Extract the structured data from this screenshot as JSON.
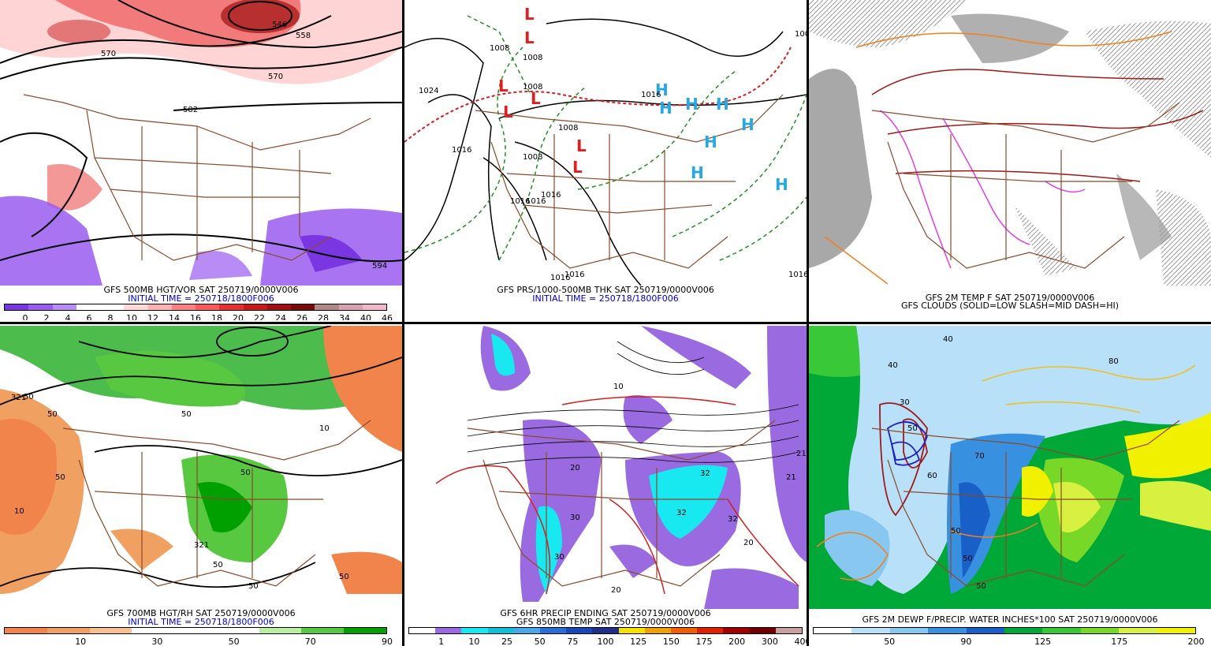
{
  "panels": [
    {
      "id": "p1",
      "caption1": "GFS 500MB HGT/VOR SAT 250719/0000V006",
      "caption2": "INITIAL TIME = 250718/1800F006",
      "colorbar_colors": [
        "#7a36e0",
        "#9a5cf0",
        "#b88cf5",
        "#ffffff",
        "#ffffff",
        "#ffd8d8",
        "#ffb0b0",
        "#ff8080",
        "#ff5858",
        "#e83030",
        "#c81818",
        "#a01010",
        "#7a0a0a",
        "#b08888",
        "#d8a0b0",
        "#f0b8c8"
      ],
      "colorbar_labels": [
        "0",
        "2",
        "4",
        "6",
        "8",
        "10",
        "12",
        "14",
        "16",
        "18",
        "20",
        "22",
        "24",
        "26",
        "28",
        "34",
        "40",
        "46"
      ],
      "contour_labels": [
        "546",
        "558",
        "570",
        "570",
        "582",
        "594"
      ]
    },
    {
      "id": "p2",
      "caption1": "GFS PRS/1000-500MB THK SAT 250719/0000V006",
      "caption2": "INITIAL TIME = 250718/1800F006",
      "high_symbols": [
        "H",
        "H",
        "H",
        "H",
        "H",
        "H",
        "H",
        "H"
      ],
      "low_symbols": [
        "L",
        "L",
        "L",
        "L",
        "L",
        "L",
        "L"
      ],
      "contour_labels": [
        "1024",
        "1008",
        "1008",
        "1008",
        "1008",
        "1008",
        "1016",
        "1016",
        "1016",
        "1008",
        "1016",
        "1016",
        "1016",
        "1016",
        "1016"
      ]
    },
    {
      "id": "p3",
      "caption1": "GFS 2M TEMP F SAT 250719/0000V006",
      "caption2": "GFS CLOUDS (SOLID=LOW SLASH=MID DASH=HI)"
    },
    {
      "id": "p4",
      "caption1": "GFS 700MB HGT/RH SAT 250719/0000V006",
      "caption2": "INITIAL TIME = 250718/1800F006",
      "colorbar_colors": [
        "#f0844a",
        "#f0a060",
        "#f8c090",
        "#ffffff",
        "#ffffff",
        "#ffffff",
        "#b8f0a0",
        "#58c840",
        "#00a000"
      ],
      "colorbar_labels": [
        "10",
        "30",
        "50",
        "70",
        "90"
      ],
      "contour_labels": [
        "321",
        "50",
        "50",
        "10",
        "50",
        "50",
        "321",
        "50",
        "50",
        "50",
        "10",
        "50"
      ]
    },
    {
      "id": "p5",
      "caption1": "GFS 6HR PRECIP ENDING SAT 250719/0000V006",
      "caption2": "GFS 850MB TEMP SAT 250719/0000V006",
      "colorbar_colors": [
        "#ffffff",
        "#9a6ae0",
        "#18e8f0",
        "#10c0d8",
        "#48a8e8",
        "#2870d8",
        "#1848b8",
        "#203088",
        "#f8e000",
        "#f0a000",
        "#f06000",
        "#e02000",
        "#a00000",
        "#700000",
        "#c8a0a0"
      ],
      "colorbar_labels": [
        "1",
        "10",
        "25",
        "50",
        "75",
        "100",
        "125",
        "150",
        "175",
        "200",
        "300",
        "400"
      ],
      "contour_labels": [
        "32",
        "32",
        "21",
        "21",
        "32",
        "20",
        "20",
        "30",
        "30",
        "10",
        "20"
      ]
    },
    {
      "id": "p6",
      "caption1": "GFS 2M DEWP F/PRECIP. WATER INCHES*100 SAT 250719/0000V006",
      "colorbar_colors": [
        "#ffffff",
        "#b8e0f8",
        "#88c8f0",
        "#3890e0",
        "#1860c8",
        "#00a838",
        "#38c838",
        "#78d828",
        "#d8f040",
        "#f0f000"
      ],
      "colorbar_labels": [
        "50",
        "90",
        "125",
        "175",
        "200"
      ],
      "contour_labels": [
        "40",
        "40",
        "50",
        "50",
        "50",
        "50",
        "60",
        "70",
        "80",
        "30"
      ]
    }
  ]
}
